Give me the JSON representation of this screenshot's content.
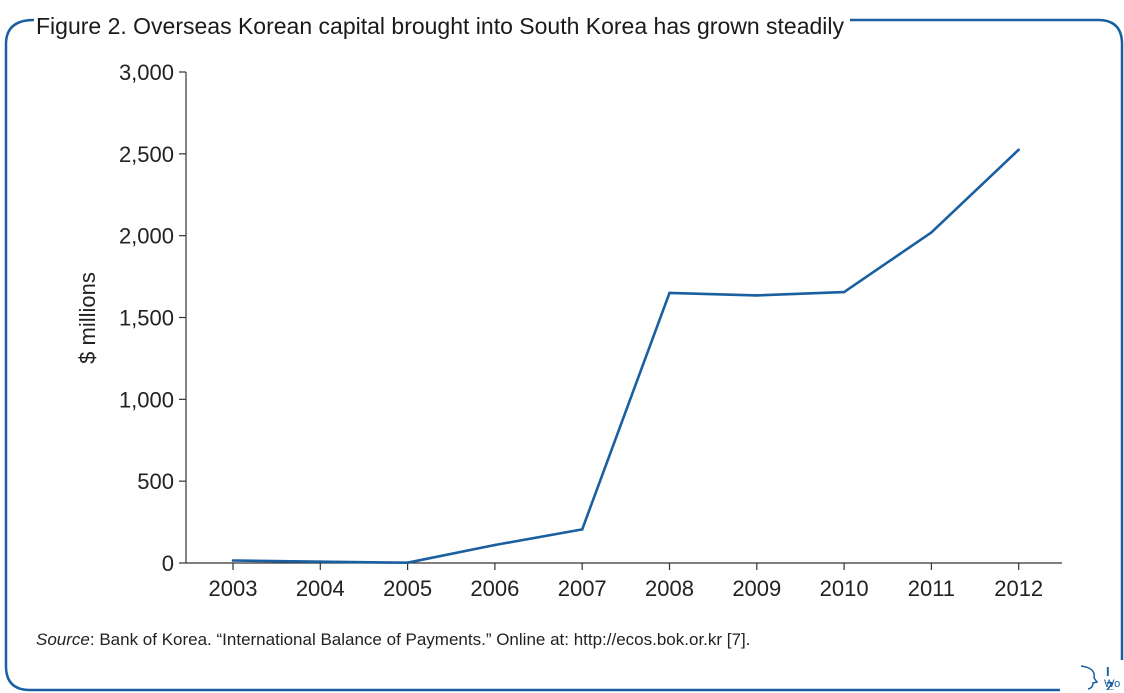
{
  "figure": {
    "title": "Figure 2. Overseas Korean capital brought into South Korea has grown steadily",
    "source_label": "Source",
    "source_text": ": Bank of Korea. “International Balance of Payments.” Online at: http://ecos.bok.or.kr [7].",
    "logo_text": "I Z A",
    "logo_sub": "World of Labor",
    "frame_color": "#1a5fa0"
  },
  "chart_data": {
    "type": "line",
    "x": [
      "2003",
      "2004",
      "2005",
      "2006",
      "2007",
      "2008",
      "2009",
      "2010",
      "2011",
      "2012"
    ],
    "series": [
      {
        "values": [
          15,
          8,
          2,
          110,
          205,
          1650,
          1635,
          1655,
          2020,
          2525
        ],
        "color": "#1a5fa0"
      }
    ],
    "ylabel": "$ millions",
    "xlabel": "",
    "ylim": [
      0,
      3000
    ],
    "yticks": [
      {
        "value": 0,
        "label": "0"
      },
      {
        "value": 500,
        "label": "500"
      },
      {
        "value": 1000,
        "label": "1,000"
      },
      {
        "value": 1500,
        "label": "1,500"
      },
      {
        "value": 2000,
        "label": "2,000"
      },
      {
        "value": 2500,
        "label": "2,500"
      },
      {
        "value": 3000,
        "label": "3,000"
      }
    ],
    "grid": false,
    "legend": "none"
  }
}
